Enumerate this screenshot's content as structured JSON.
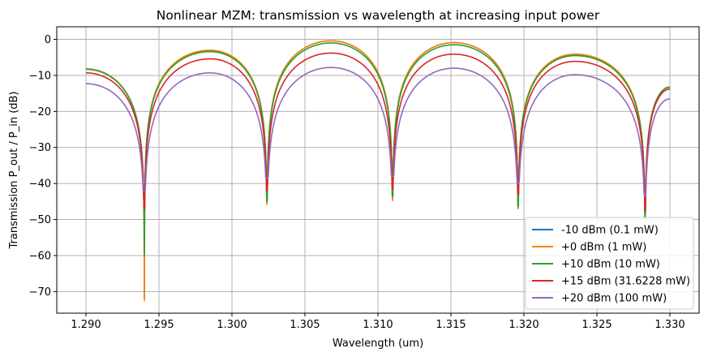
{
  "chart_data": {
    "type": "line",
    "title": "Nonlinear MZM: transmission vs wavelength at increasing input power",
    "xlabel": "Wavelength (um)",
    "ylabel": "Transmission P_out / P_in (dB)",
    "xlim": [
      1.288,
      1.332
    ],
    "ylim": [
      -76,
      3.5
    ],
    "xticks": [
      1.29,
      1.295,
      1.3,
      1.305,
      1.31,
      1.315,
      1.32,
      1.325,
      1.33
    ],
    "xtick_labels": [
      "1.290",
      "1.295",
      "1.300",
      "1.305",
      "1.310",
      "1.315",
      "1.320",
      "1.325",
      "1.330"
    ],
    "yticks": [
      0,
      -10,
      -20,
      -30,
      -40,
      -50,
      -60,
      -70
    ],
    "ytick_labels": [
      "0",
      "−10",
      "−20",
      "−30",
      "−40",
      "−50",
      "−60",
      "−70"
    ],
    "grid": true,
    "legend_position": "lower-right",
    "x_range": [
      1.29,
      1.33
    ],
    "nulls": [
      1.294,
      1.3024,
      1.311,
      1.3196,
      1.3283
    ],
    "peaks": [
      {
        "x": 1.29,
        "left_edge": true
      },
      {
        "x": 1.2985
      },
      {
        "x": 1.3068
      },
      {
        "x": 1.3152
      },
      {
        "x": 1.3235
      },
      {
        "x": 1.33,
        "right_edge": true
      }
    ],
    "series": [
      {
        "name": "-10 dBm  (0.1 mW)",
        "color": "#1f77b4",
        "peak_values": [
          -8.2,
          -3.1,
          -0.4,
          -0.9,
          -4.2,
          -13.2
        ],
        "null_depths": [
          -72,
          -45.5,
          -44.5,
          -46.8,
          -48.5
        ]
      },
      {
        "name": "+0 dBm  (1 mW)",
        "color": "#ff7f0e",
        "peak_values": [
          -8.2,
          -3.0,
          -0.4,
          -0.9,
          -4.1,
          -13.2
        ],
        "null_depths": [
          -72.5,
          -45.8,
          -44.8,
          -47.0,
          -48.8
        ]
      },
      {
        "name": "+10 dBm  (10 mW)",
        "color": "#2ca02c",
        "peak_values": [
          -8.3,
          -3.4,
          -1.0,
          -1.5,
          -4.5,
          -13.3
        ],
        "null_depths": [
          -60,
          -45.0,
          -43.5,
          -46.5,
          -50.0
        ]
      },
      {
        "name": "+15 dBm  (31.6228 mW)",
        "color": "#d62728",
        "peak_values": [
          -9.3,
          -5.4,
          -3.8,
          -4.1,
          -6.1,
          -13.8
        ],
        "null_depths": [
          -47,
          -42.0,
          -41.5,
          -43.0,
          -47.5
        ]
      },
      {
        "name": "+20 dBm  (100 mW)",
        "color": "#9467bd",
        "peak_values": [
          -12.3,
          -9.3,
          -7.8,
          -8.0,
          -9.8,
          -16.5
        ],
        "null_depths": [
          -42,
          -38.5,
          -38.0,
          -40.0,
          -43.5
        ]
      }
    ]
  }
}
